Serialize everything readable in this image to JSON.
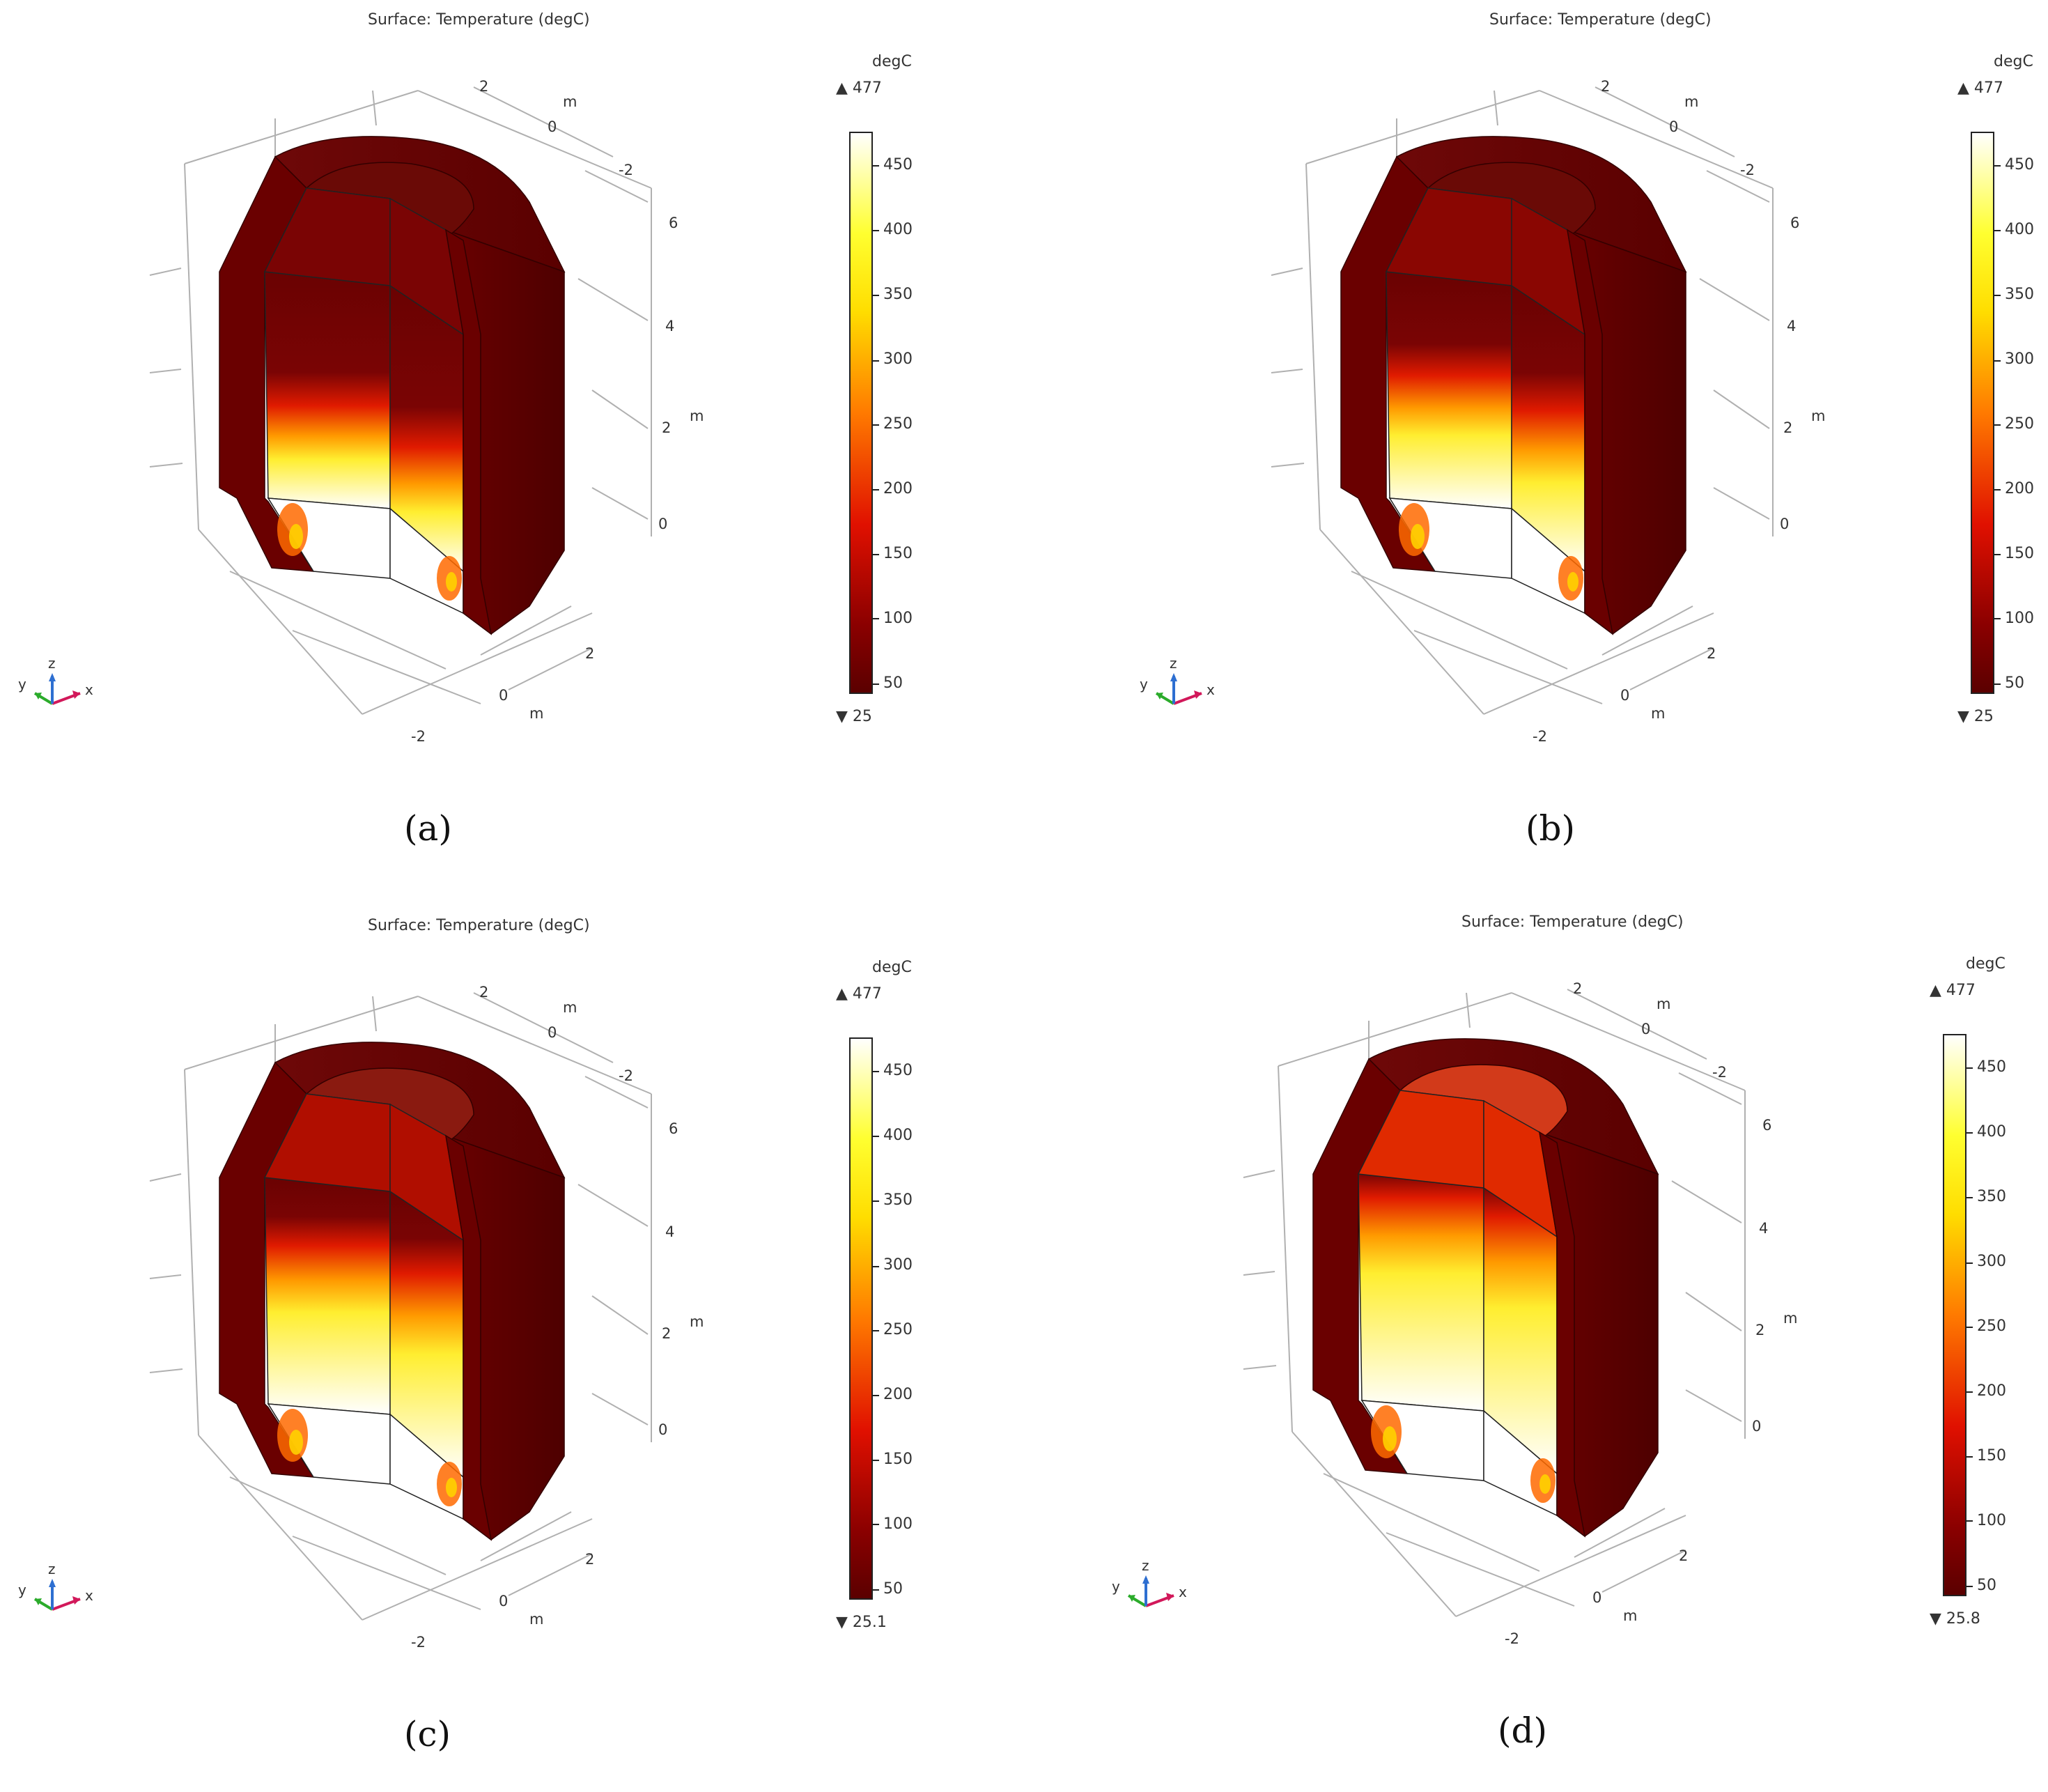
{
  "panels": [
    {
      "id": "a",
      "title": "Surface: Temperature (degC)",
      "colorbar": {
        "unit": "degC",
        "max_label": "▲ 477",
        "min_label": "▼ 25",
        "ticks": [
          "450",
          "400",
          "350",
          "300",
          "250",
          "200",
          "150",
          "100",
          "50"
        ]
      },
      "axes": {
        "y_ticks": [
          "2",
          "0",
          "-2"
        ],
        "z_ticks": [
          "6",
          "4",
          "2",
          "0"
        ],
        "x_ticks": [
          "2",
          "0",
          "-2"
        ],
        "unit": "m"
      },
      "triad": {
        "x": "x",
        "y": "y",
        "z": "z"
      },
      "caption": "(a)",
      "hot_extent": 0.18
    },
    {
      "id": "b",
      "title": "Surface: Temperature (degC)",
      "colorbar": {
        "unit": "degC",
        "max_label": "▲ 477",
        "min_label": "▼ 25",
        "ticks": [
          "450",
          "400",
          "350",
          "300",
          "250",
          "200",
          "150",
          "100",
          "50"
        ]
      },
      "axes": {
        "y_ticks": [
          "2",
          "0",
          "-2"
        ],
        "z_ticks": [
          "6",
          "4",
          "2",
          "0"
        ],
        "x_ticks": [
          "2",
          "0",
          "-2"
        ],
        "unit": "m"
      },
      "triad": {
        "x": "x",
        "y": "y",
        "z": "z"
      },
      "caption": "(b)",
      "hot_extent": 0.35
    },
    {
      "id": "c",
      "title": "Surface: Temperature (degC)",
      "colorbar": {
        "unit": "degC",
        "max_label": "▲ 477",
        "min_label": "▼ 25.1",
        "ticks": [
          "450",
          "400",
          "350",
          "300",
          "250",
          "200",
          "150",
          "100",
          "50"
        ]
      },
      "axes": {
        "y_ticks": [
          "2",
          "0",
          "-2"
        ],
        "z_ticks": [
          "6",
          "4",
          "2",
          "0"
        ],
        "x_ticks": [
          "2",
          "0",
          "-2"
        ],
        "unit": "m"
      },
      "triad": {
        "x": "x",
        "y": "y",
        "z": "z"
      },
      "caption": "(c)",
      "hot_extent": 0.55
    },
    {
      "id": "d",
      "title": "Surface: Temperature (degC)",
      "colorbar": {
        "unit": "degC",
        "max_label": "▲ 477",
        "min_label": "▼ 25.8",
        "ticks": [
          "450",
          "400",
          "350",
          "300",
          "250",
          "200",
          "150",
          "100",
          "50"
        ]
      },
      "axes": {
        "y_ticks": [
          "2",
          "0",
          "-2"
        ],
        "z_ticks": [
          "6",
          "4",
          "2",
          "0"
        ],
        "x_ticks": [
          "2",
          "0",
          "-2"
        ],
        "unit": "m"
      },
      "triad": {
        "x": "x",
        "y": "y",
        "z": "z"
      },
      "caption": "(d)",
      "hot_extent": 0.8
    }
  ],
  "colors": {
    "cold": "#5a0000",
    "mid": "#d41a00",
    "warm": "#ff8a00",
    "hot": "#ffee00",
    "max": "#ffffff"
  }
}
